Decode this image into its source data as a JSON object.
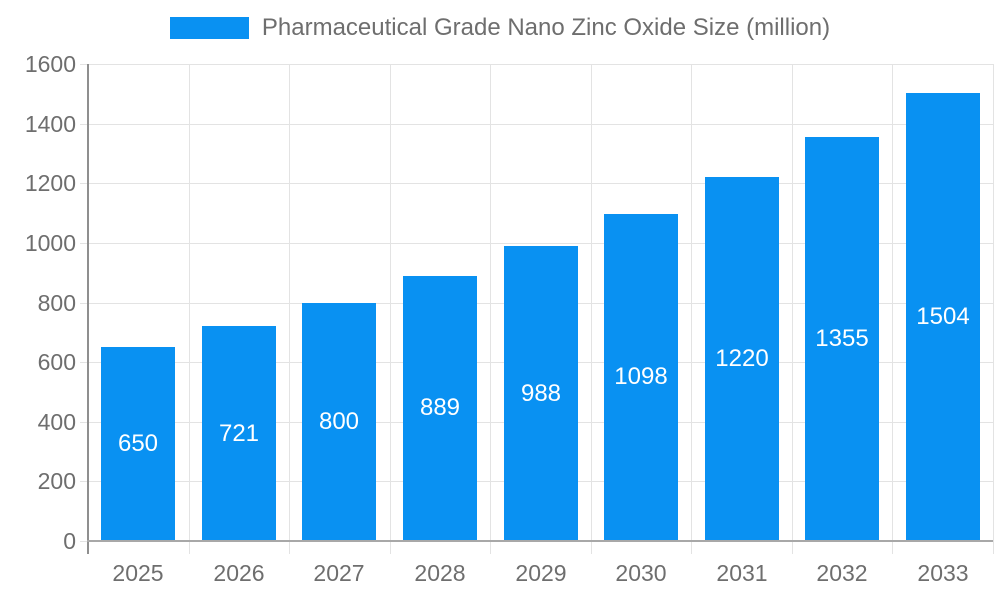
{
  "chart_data": {
    "type": "bar",
    "title": "Pharmaceutical Grade Nano Zinc Oxide Size (million)",
    "categories": [
      "2025",
      "2026",
      "2027",
      "2028",
      "2029",
      "2030",
      "2031",
      "2032",
      "2033"
    ],
    "values": [
      650,
      721,
      800,
      889,
      988,
      1098,
      1220,
      1355,
      1504
    ],
    "ylim": [
      0,
      1600
    ],
    "ytick_step": 200,
    "yticks": [
      0,
      200,
      400,
      600,
      800,
      1000,
      1200,
      1400,
      1600
    ],
    "grid": true,
    "legend_position": "top",
    "colors": {
      "bar": "#0991f2",
      "bar_value_text": "#ffffff",
      "axis_text": "#6e6e6e",
      "legend_text": "#6e6e6e",
      "gridline": "#e3e3e3",
      "x_axis_line": "#a8a8a8",
      "y_axis_line": "#8f8f8f"
    }
  }
}
